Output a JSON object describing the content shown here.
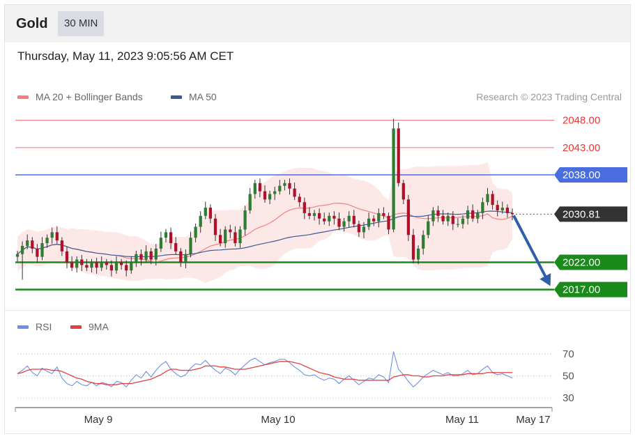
{
  "header": {
    "instrument": "Gold",
    "timeframe": "30 MIN"
  },
  "date_text": "Thursday, May 11, 2023 9:05:56 AM CET",
  "legend": {
    "ma20": "MA 20 + Bollinger Bands",
    "ma50": "MA 50"
  },
  "credit": "Research © 2023 Trading Central",
  "rsi_legend": {
    "rsi": "RSI",
    "ma9": "9MA"
  },
  "colors": {
    "ma20": "#f08080",
    "ma50": "#3b5a94",
    "bollinger_fill": "#fde4e4",
    "candle_up": "#2e7d32",
    "candle_down": "#b0102a",
    "support": "#1a8a1a",
    "resistance_red": "#f07070",
    "resistance_blue": "#4a6ee0",
    "current_price_tag": "#333333",
    "arrow": "#2f5fa8",
    "rsi_line": "#6f8fe0",
    "rsi_ma": "#e04040"
  },
  "chart_data": [
    {
      "type": "candlestick",
      "x_axis": {
        "ticks": [
          "May 9",
          "May 10",
          "May 11",
          "May 17"
        ]
      },
      "y_range": [
        2013,
        2050
      ],
      "levels": [
        {
          "value": 2048.0,
          "label": "2048.00",
          "kind": "resistance",
          "color": "#f07070",
          "tag": "text"
        },
        {
          "value": 2043.0,
          "label": "2043.00",
          "kind": "resistance",
          "color": "#f07070",
          "tag": "text"
        },
        {
          "value": 2038.0,
          "label": "2038.00",
          "kind": "pivot",
          "color": "#4a6ee0",
          "tag": "box"
        },
        {
          "value": 2030.81,
          "label": "2030.81",
          "kind": "current",
          "color": "#333333",
          "tag": "box"
        },
        {
          "value": 2022.0,
          "label": "2022.00",
          "kind": "support",
          "color": "#1a8a1a",
          "tag": "box"
        },
        {
          "value": 2017.0,
          "label": "2017.00",
          "kind": "support",
          "color": "#1a8a1a",
          "tag": "box"
        }
      ],
      "forecast_arrow": {
        "from": 2030.81,
        "to": 2017.0
      },
      "close": [
        2023.5,
        2025.0,
        2026.0,
        2024.5,
        2023.0,
        2025.5,
        2026.5,
        2027.5,
        2026.0,
        2024.0,
        2022.0,
        2021.0,
        2022.5,
        2021.5,
        2021.0,
        2022.0,
        2021.0,
        2022.0,
        2021.5,
        2020.5,
        2022.0,
        2021.5,
        2020.5,
        2022.0,
        2023.5,
        2022.5,
        2024.0,
        2022.5,
        2024.5,
        2026.5,
        2027.5,
        2025.5,
        2024.0,
        2022.0,
        2023.5,
        2026.5,
        2028.5,
        2030.5,
        2032.0,
        2030.0,
        2027.0,
        2025.5,
        2028.0,
        2027.5,
        2025.5,
        2028.0,
        2031.5,
        2034.5,
        2036.5,
        2035.0,
        2033.5,
        2034.5,
        2035.0,
        2036.0,
        2036.5,
        2035.5,
        2034.0,
        2033.0,
        2031.0,
        2030.5,
        2031.0,
        2030.0,
        2029.5,
        2030.5,
        2030.0,
        2028.5,
        2029.5,
        2030.5,
        2029.0,
        2027.5,
        2028.5,
        2030.0,
        2029.5,
        2031.0,
        2030.5,
        2028.0,
        2046.5,
        2036.5,
        2033.5,
        2027.0,
        2022.5,
        2024.5,
        2027.0,
        2029.5,
        2031.5,
        2030.5,
        2029.5,
        2030.5,
        2029.0,
        2029.0,
        2030.0,
        2031.5,
        2030.0,
        2031.0,
        2033.0,
        2034.5,
        2032.5,
        2031.5,
        2032.0,
        2031.0,
        2030.81
      ],
      "rsi_axis": {
        "ticks": [
          70,
          50,
          30
        ],
        "range": [
          20,
          80
        ]
      },
      "rsi": [
        52,
        55,
        59,
        53,
        50,
        57,
        54,
        52,
        58,
        48,
        43,
        41,
        45,
        42,
        41,
        44,
        41,
        44,
        43,
        40,
        45,
        44,
        40,
        46,
        51,
        48,
        54,
        49,
        55,
        60,
        63,
        56,
        52,
        49,
        51,
        57,
        61,
        60,
        64,
        59,
        55,
        52,
        57,
        55,
        51,
        56,
        60,
        64,
        66,
        63,
        60,
        62,
        63,
        65,
        65,
        62,
        58,
        55,
        51,
        50,
        51,
        48,
        46,
        48,
        47,
        43,
        47,
        50,
        46,
        42,
        45,
        48,
        47,
        51,
        49,
        44,
        72,
        56,
        51,
        45,
        40,
        44,
        49,
        52,
        55,
        53,
        51,
        53,
        50,
        50,
        52,
        55,
        51,
        52,
        56,
        59,
        53,
        51,
        52,
        50,
        48
      ],
      "rsi_ma": [
        52,
        53,
        55,
        56,
        56,
        56,
        56,
        55,
        55,
        54,
        52,
        50,
        48,
        47,
        45,
        44,
        43,
        43,
        42,
        42,
        42,
        43,
        43,
        43,
        44,
        45,
        46,
        47,
        49,
        51,
        54,
        56,
        56,
        55,
        55,
        55,
        56,
        57,
        59,
        59,
        59,
        58,
        58,
        57,
        56,
        56,
        56,
        57,
        58,
        59,
        60,
        61,
        62,
        63,
        63,
        63,
        62,
        61,
        59,
        57,
        55,
        53,
        52,
        51,
        49,
        48,
        47,
        47,
        47,
        46,
        46,
        46,
        46,
        46,
        46,
        46,
        49,
        50,
        51,
        51,
        50,
        50,
        49,
        49,
        50,
        50,
        50,
        51,
        51,
        51,
        51,
        52,
        52,
        52,
        52,
        53,
        53,
        53,
        53,
        53,
        53
      ]
    }
  ]
}
